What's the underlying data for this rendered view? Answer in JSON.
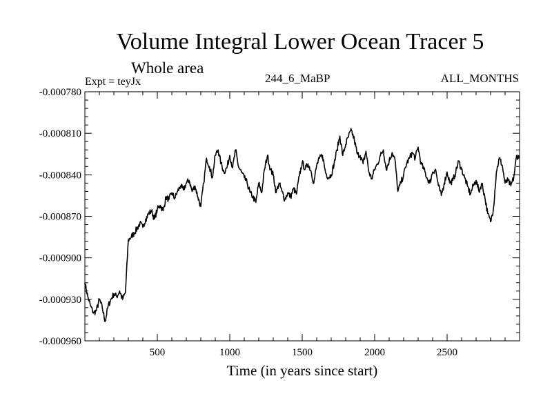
{
  "chart_data": {
    "type": "line",
    "title": "Volume Integral Lower Ocean Tracer 5",
    "subtitle": "Whole area",
    "experiment_label": "Expt = teyJx",
    "run_label": "244_6_MaBP",
    "period_label": "ALL_MONTHS",
    "xlabel": "Time (in years since start)",
    "ylabel": "",
    "xlim": [
      0,
      3000
    ],
    "ylim": [
      -0.00096,
      -0.00078
    ],
    "x_ticks": [
      500,
      1000,
      1500,
      2000,
      2500
    ],
    "x_tick_labels": [
      "500",
      "1000",
      "1500",
      "2000",
      "2500"
    ],
    "y_ticks": [
      -0.00078,
      -0.00081,
      -0.00084,
      -0.00087,
      -0.0009,
      -0.00093,
      -0.00096
    ],
    "y_tick_labels": [
      "-0.000780",
      "-0.000810",
      "-0.000840",
      "-0.000870",
      "-0.000900",
      "-0.000930",
      "-0.000960"
    ],
    "grid": false,
    "series": [
      {
        "name": "Volume Integral Lower Ocean Tracer 5",
        "x": [
          0,
          20,
          40,
          60,
          80,
          100,
          120,
          140,
          160,
          180,
          200,
          220,
          240,
          260,
          280,
          300,
          320,
          340,
          360,
          380,
          400,
          420,
          440,
          460,
          480,
          500,
          520,
          540,
          560,
          580,
          600,
          620,
          640,
          660,
          680,
          700,
          720,
          740,
          760,
          780,
          800,
          820,
          840,
          860,
          880,
          900,
          920,
          940,
          960,
          980,
          1000,
          1020,
          1040,
          1060,
          1080,
          1100,
          1120,
          1140,
          1160,
          1180,
          1200,
          1220,
          1240,
          1260,
          1280,
          1300,
          1320,
          1340,
          1360,
          1380,
          1400,
          1420,
          1440,
          1460,
          1480,
          1500,
          1520,
          1540,
          1560,
          1580,
          1600,
          1620,
          1640,
          1660,
          1680,
          1700,
          1720,
          1740,
          1760,
          1780,
          1800,
          1820,
          1840,
          1860,
          1880,
          1900,
          1920,
          1940,
          1960,
          1980,
          2000,
          2020,
          2040,
          2060,
          2080,
          2100,
          2120,
          2140,
          2160,
          2180,
          2200,
          2220,
          2240,
          2260,
          2280,
          2300,
          2320,
          2340,
          2360,
          2380,
          2400,
          2420,
          2440,
          2460,
          2480,
          2500,
          2520,
          2540,
          2560,
          2580,
          2600,
          2620,
          2640,
          2660,
          2680,
          2700,
          2720,
          2740,
          2760,
          2780,
          2800,
          2820,
          2840,
          2860,
          2880,
          2900,
          2920,
          2940,
          2960,
          2980,
          3000
        ],
        "values": [
          -0.000918,
          -0.000928,
          -0.000935,
          -0.00094,
          -0.000938,
          -0.00093,
          -0.000936,
          -0.000946,
          -0.000935,
          -0.00093,
          -0.000926,
          -0.000928,
          -0.000924,
          -0.00093,
          -0.000925,
          -0.000887,
          -0.000885,
          -0.000882,
          -0.000879,
          -0.000875,
          -0.000878,
          -0.000872,
          -0.000868,
          -0.000866,
          -0.000872,
          -0.000865,
          -0.000862,
          -0.000866,
          -0.000856,
          -0.000858,
          -0.000853,
          -0.000857,
          -0.000852,
          -0.000848,
          -0.000851,
          -0.000846,
          -0.000844,
          -0.000852,
          -0.000848,
          -0.000856,
          -0.000863,
          -0.000846,
          -0.000828,
          -0.000834,
          -0.000842,
          -0.000826,
          -0.000822,
          -0.000832,
          -0.000838,
          -0.000835,
          -0.000826,
          -0.000835,
          -0.000822,
          -0.000834,
          -0.000838,
          -0.000842,
          -0.000846,
          -0.000853,
          -0.000856,
          -0.00086,
          -0.000846,
          -0.000853,
          -0.000836,
          -0.000826,
          -0.000836,
          -0.00084,
          -0.000853,
          -0.000846,
          -0.000852,
          -0.000858,
          -0.000853,
          -0.000856,
          -0.00085,
          -0.000854,
          -0.000841,
          -0.000831,
          -0.000836,
          -0.000832,
          -0.000837,
          -0.000846,
          -0.000833,
          -0.000828,
          -0.000826,
          -0.000838,
          -0.000842,
          -0.00084,
          -0.000832,
          -0.000822,
          -0.000812,
          -0.000826,
          -0.000818,
          -0.000812,
          -0.000808,
          -0.000815,
          -0.000825,
          -0.000826,
          -0.000832,
          -0.000823,
          -0.000838,
          -0.000843,
          -0.000836,
          -0.000832,
          -0.000826,
          -0.000822,
          -0.000836,
          -0.00083,
          -0.000824,
          -0.000829,
          -0.000852,
          -0.000846,
          -0.00084,
          -0.000832,
          -0.000828,
          -0.000824,
          -0.000828,
          -0.00082,
          -0.000832,
          -0.000836,
          -0.000842,
          -0.000846,
          -0.000838,
          -0.000836,
          -0.000848,
          -0.000855,
          -0.000846,
          -0.000838,
          -0.000846,
          -0.000844,
          -0.000838,
          -0.00083,
          -0.000836,
          -0.000842,
          -0.000848,
          -0.000854,
          -0.000848,
          -0.000844,
          -0.000852,
          -0.000846,
          -0.000856,
          -0.000868,
          -0.000874,
          -0.000864,
          -0.000838,
          -0.000828,
          -0.000833,
          -0.000846,
          -0.000844,
          -0.000848,
          -0.000842,
          -0.000826,
          -0.000828
        ]
      }
    ]
  }
}
